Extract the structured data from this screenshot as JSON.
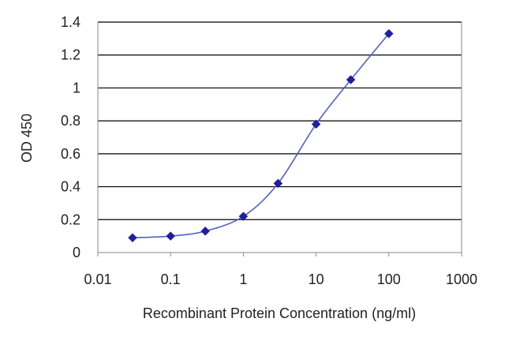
{
  "chart_data": {
    "type": "scatter",
    "title": "",
    "xlabel": "Recombinant Protein Concentration (ng/ml)",
    "ylabel": "OD 450",
    "x_scale": "log",
    "xlim": [
      0.01,
      1000
    ],
    "ylim": [
      0,
      1.4
    ],
    "x_ticks": [
      0.01,
      0.1,
      1,
      10,
      100,
      1000
    ],
    "x_tick_labels": [
      "0.01",
      "0.1",
      "1",
      "10",
      "100",
      "1000"
    ],
    "y_ticks": [
      0,
      0.2,
      0.4,
      0.6,
      0.8,
      1,
      1.2,
      1.4
    ],
    "y_tick_labels": [
      "0",
      "0.2",
      "0.4",
      "0.6",
      "0.8",
      "1",
      "1.2",
      "1.4"
    ],
    "grid": true,
    "legend": "none",
    "series": [
      {
        "color": "#1f1fa0",
        "line": "smooth",
        "marker": "diamond",
        "x": [
          0.03,
          0.1,
          0.3,
          1,
          3,
          10,
          30,
          100
        ],
        "y": [
          0.09,
          0.1,
          0.13,
          0.22,
          0.42,
          0.78,
          1.05,
          1.33
        ]
      }
    ]
  }
}
